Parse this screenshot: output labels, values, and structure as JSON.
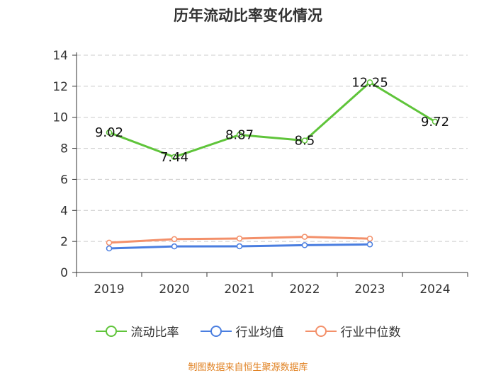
{
  "title": "历年流动比率变化情况",
  "source": "制图数据来自恒生聚源数据库",
  "legend": [
    {
      "name": "流动比率",
      "color": "#5fc43a",
      "icon": "line-circle-icon"
    },
    {
      "name": "行业均值",
      "color": "#4a7ee0",
      "icon": "line-circle-icon"
    },
    {
      "name": "行业中位数",
      "color": "#f3906a",
      "icon": "line-circle-icon"
    }
  ],
  "chart_data": {
    "type": "line",
    "title": "历年流动比率变化情况",
    "categories": [
      "2019",
      "2020",
      "2021",
      "2022",
      "2023",
      "2024"
    ],
    "ylim": [
      0,
      14
    ],
    "yticks": [
      0,
      2,
      4,
      6,
      8,
      10,
      12,
      14
    ],
    "grid": true,
    "legend_position": "bottom",
    "series": [
      {
        "name": "流动比率",
        "color": "#5fc43a",
        "values": [
          9.02,
          7.44,
          8.87,
          8.5,
          12.25,
          9.72
        ],
        "labels": [
          "9.02",
          "7.44",
          "8.87",
          "8.5",
          "12.25",
          "9.72"
        ]
      },
      {
        "name": "行业均值",
        "color": "#4a7ee0",
        "values": [
          1.55,
          1.68,
          1.69,
          1.76,
          1.81,
          null
        ]
      },
      {
        "name": "行业中位数",
        "color": "#f3906a",
        "values": [
          1.92,
          2.15,
          2.19,
          2.3,
          2.18,
          null
        ]
      }
    ]
  }
}
